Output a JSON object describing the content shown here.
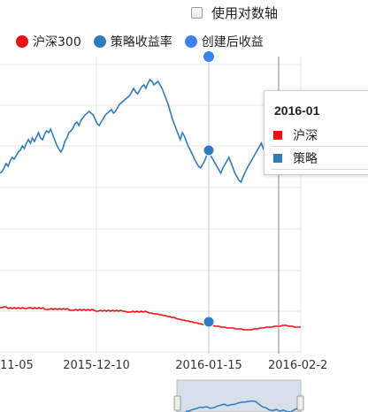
{
  "controls": {
    "log_scale_label": "使用对数轴",
    "log_scale_checked": false
  },
  "legend": [
    {
      "label": "沪深300",
      "color": "#ee1111",
      "icon": "red-dot-icon"
    },
    {
      "label": "策略收益率",
      "color": "#2f7bbf",
      "icon": "blue-dot-icon"
    },
    {
      "label": "创建后收益",
      "color": "#3b82f0",
      "icon": "bright-blue-dot-icon"
    }
  ],
  "tooltip": {
    "title": "2016-01",
    "rows": [
      {
        "label": "沪深",
        "color": "#ee1111"
      },
      {
        "label": "策略",
        "color": "#2f7bbf"
      }
    ]
  },
  "chart_data": {
    "type": "line",
    "x_tick_labels": [
      "11-05",
      "2015-12-10",
      "2016-01-15",
      "2016-02-2"
    ],
    "grid": true,
    "series": [
      {
        "name": "沪深300",
        "color": "#ee1111",
        "values": [
          348,
          348,
          347,
          347,
          349,
          348,
          349,
          348,
          349,
          348,
          349,
          348,
          349,
          349,
          348,
          348,
          349,
          348,
          349,
          348,
          349,
          348,
          350,
          350,
          350,
          349,
          350,
          349,
          350,
          349,
          350,
          349,
          350,
          349,
          351,
          351,
          351,
          350,
          351,
          350,
          351,
          350,
          351,
          350,
          351,
          350,
          351,
          352,
          352,
          351,
          352,
          351,
          352,
          351,
          352,
          351,
          352,
          351,
          352,
          351,
          352,
          352,
          353,
          353,
          353,
          352,
          353,
          352,
          353,
          352,
          353,
          352,
          353,
          354,
          354,
          355,
          355,
          355,
          356,
          356,
          357,
          357,
          358,
          358,
          359,
          359,
          360,
          361,
          361,
          362,
          362,
          363,
          363,
          364,
          364,
          365,
          365,
          366,
          366,
          367,
          367,
          367,
          368,
          368,
          368,
          369,
          369,
          369,
          370,
          370,
          370,
          371,
          371,
          371,
          371,
          372,
          372,
          372,
          372,
          373,
          373,
          373,
          373,
          373,
          372,
          372,
          372,
          371,
          371,
          371,
          370,
          370,
          370,
          370,
          369,
          369,
          369,
          369,
          368,
          368,
          368,
          369,
          369,
          369,
          370,
          370,
          370,
          370
        ]
      },
      {
        "name": "策略收益率",
        "color": "#2f7bbf",
        "values": [
          196,
          194,
          190,
          185,
          188,
          182,
          178,
          180,
          176,
          172,
          170,
          165,
          168,
          162,
          158,
          162,
          156,
          160,
          155,
          150,
          156,
          158,
          152,
          148,
          150,
          146,
          152,
          158,
          164,
          168,
          172,
          168,
          160,
          156,
          150,
          148,
          145,
          140,
          138,
          142,
          136,
          133,
          130,
          128,
          126,
          128,
          130,
          135,
          140,
          142,
          138,
          134,
          130,
          128,
          126,
          124,
          128,
          126,
          122,
          118,
          116,
          114,
          112,
          110,
          108,
          104,
          100,
          104,
          106,
          102,
          98,
          96,
          100,
          94,
          90,
          92,
          96,
          94,
          92,
          96,
          100,
          106,
          112,
          118,
          126,
          134,
          140,
          146,
          152,
          158,
          150,
          154,
          160,
          166,
          170,
          175,
          180,
          184,
          188,
          190,
          186,
          182,
          176,
          172,
          176,
          180,
          184,
          188,
          192,
          196,
          190,
          186,
          182,
          178,
          184,
          190,
          196,
          200,
          204,
          206,
          200,
          195,
          190,
          186,
          182,
          178,
          174,
          170,
          166,
          162,
          168,
          164
        ]
      },
      {
        "name": "创建后收益",
        "color": "#3b82f0",
        "values": []
      }
    ]
  }
}
